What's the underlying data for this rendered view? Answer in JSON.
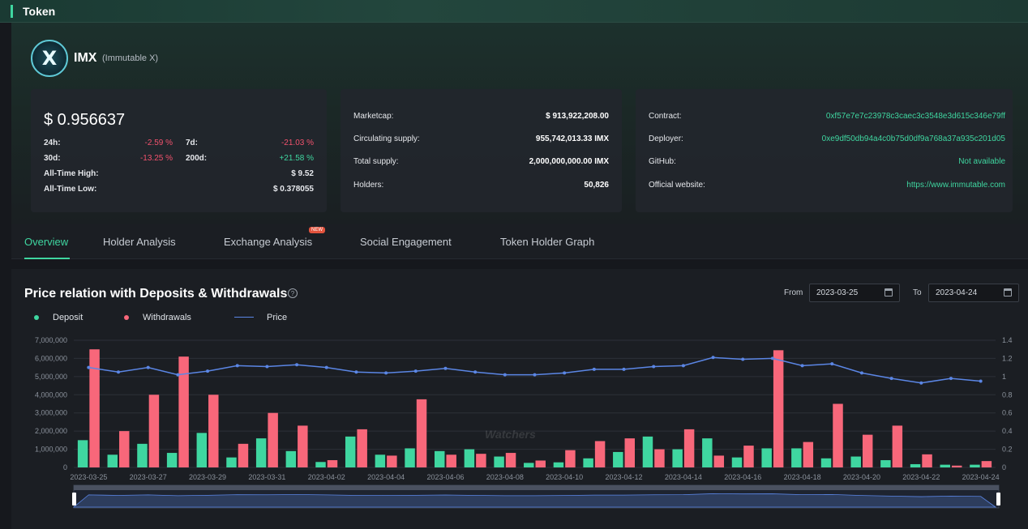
{
  "header": {
    "title": "Token"
  },
  "token": {
    "symbol": "IMX",
    "name": "(Immutable X)",
    "logo_letter": "X"
  },
  "price_card": {
    "price": "$ 0.956637",
    "stats": [
      {
        "label": "24h:",
        "value": "-2.59 %",
        "trend": "down"
      },
      {
        "label": "7d:",
        "value": "-21.03 %",
        "trend": "down"
      },
      {
        "label": "30d:",
        "value": "-13.25 %",
        "trend": "down"
      },
      {
        "label": "200d:",
        "value": "+21.58 %",
        "trend": "up"
      }
    ],
    "ath_label": "All-Time High:",
    "ath_value": "$ 9.52",
    "atl_label": "All-Time Low:",
    "atl_value": "$ 0.378055"
  },
  "supply_card": {
    "rows": [
      {
        "label": "Marketcap:",
        "value": "$ 913,922,208.00"
      },
      {
        "label": "Circulating supply:",
        "value": "955,742,013.33 IMX"
      },
      {
        "label": "Total supply:",
        "value": "2,000,000,000.00 IMX"
      },
      {
        "label": "Holders:",
        "value": "50,826"
      }
    ]
  },
  "info_card": {
    "rows": [
      {
        "label": "Contract:",
        "value": "0xf57e7e7c23978c3caec3c3548e3d615c346e79ff"
      },
      {
        "label": "Deployer:",
        "value": "0xe9df50db94a4c0b75d0df9a768a37a935c201d05"
      },
      {
        "label": "GitHub:",
        "value": "Not available"
      },
      {
        "label": "Official website:",
        "value": "https://www.immutable.com"
      }
    ]
  },
  "tabs": [
    {
      "label": "Overview",
      "active": true
    },
    {
      "label": "Holder Analysis"
    },
    {
      "label": "Exchange Analysis",
      "badge": "NEW"
    },
    {
      "label": "Social Engagement"
    },
    {
      "label": "Token Holder Graph"
    }
  ],
  "panel": {
    "title": "Price relation with Deposits & Withdrawals",
    "help_glyph": "?",
    "from_label": "From",
    "from_value": "2023-03-25",
    "to_label": "To",
    "to_value": "2023-04-24",
    "watermark": "Watchers"
  },
  "colors": {
    "accent": "#3fd6a0",
    "deposit": "#3fd6a0",
    "withdrawals": "#f8677a",
    "price": "#5b86e5"
  },
  "chart_data": {
    "type": "bar",
    "legend": [
      "Deposit",
      "Withdrawals",
      "Price"
    ],
    "x": [
      "2023-03-25",
      "2023-03-26",
      "2023-03-27",
      "2023-03-28",
      "2023-03-29",
      "2023-03-30",
      "2023-03-31",
      "2023-04-01",
      "2023-04-02",
      "2023-04-03",
      "2023-04-04",
      "2023-04-05",
      "2023-04-06",
      "2023-04-07",
      "2023-04-08",
      "2023-04-09",
      "2023-04-10",
      "2023-04-11",
      "2023-04-12",
      "2023-04-13",
      "2023-04-14",
      "2023-04-15",
      "2023-04-16",
      "2023-04-17",
      "2023-04-18",
      "2023-04-19",
      "2023-04-20",
      "2023-04-21",
      "2023-04-22",
      "2023-04-23",
      "2023-04-24"
    ],
    "x_tick_labels": [
      "2023-03-25",
      "2023-03-27",
      "2023-03-29",
      "2023-03-31",
      "2023-04-02",
      "2023-04-04",
      "2023-04-06",
      "2023-04-08",
      "2023-04-10",
      "2023-04-12",
      "2023-04-14",
      "2023-04-16",
      "2023-04-18",
      "2023-04-20",
      "2023-04-22",
      "2023-04-24"
    ],
    "series": [
      {
        "name": "Deposit",
        "axis": "left",
        "values": [
          1500000,
          700000,
          1300000,
          800000,
          1900000,
          550000,
          1600000,
          900000,
          300000,
          1700000,
          700000,
          1050000,
          900000,
          1000000,
          600000,
          250000,
          280000,
          500000,
          850000,
          1700000,
          1000000,
          1600000,
          550000,
          1050000,
          1050000,
          500000,
          600000,
          400000,
          180000,
          150000,
          150000
        ]
      },
      {
        "name": "Withdrawals",
        "axis": "left",
        "values": [
          6500000,
          2000000,
          4000000,
          6100000,
          4000000,
          1300000,
          3000000,
          2300000,
          400000,
          2100000,
          650000,
          3750000,
          700000,
          750000,
          800000,
          380000,
          950000,
          1450000,
          1600000,
          1000000,
          2100000,
          650000,
          1200000,
          6450000,
          1400000,
          3500000,
          1800000,
          2300000,
          720000,
          100000,
          350000
        ]
      },
      {
        "name": "Price",
        "axis": "right",
        "type": "line",
        "values": [
          1.1,
          1.05,
          1.1,
          1.02,
          1.06,
          1.12,
          1.11,
          1.13,
          1.1,
          1.05,
          1.04,
          1.06,
          1.09,
          1.05,
          1.02,
          1.02,
          1.04,
          1.08,
          1.08,
          1.11,
          1.12,
          1.21,
          1.19,
          1.2,
          1.12,
          1.14,
          1.04,
          0.98,
          0.93,
          0.98,
          0.95
        ]
      }
    ],
    "y_left": {
      "ticks": [
        "0",
        "1,000,000",
        "2,000,000",
        "3,000,000",
        "4,000,000",
        "5,000,000",
        "6,000,000",
        "7,000,000"
      ],
      "range": [
        0,
        7000000
      ]
    },
    "y_right": {
      "ticks": [
        "0",
        "0.2",
        "0.4",
        "0.6",
        "0.8",
        "1",
        "1.2",
        "1.4"
      ],
      "range": [
        0,
        1.4
      ]
    },
    "grid": true,
    "legend_position": "top-left"
  }
}
